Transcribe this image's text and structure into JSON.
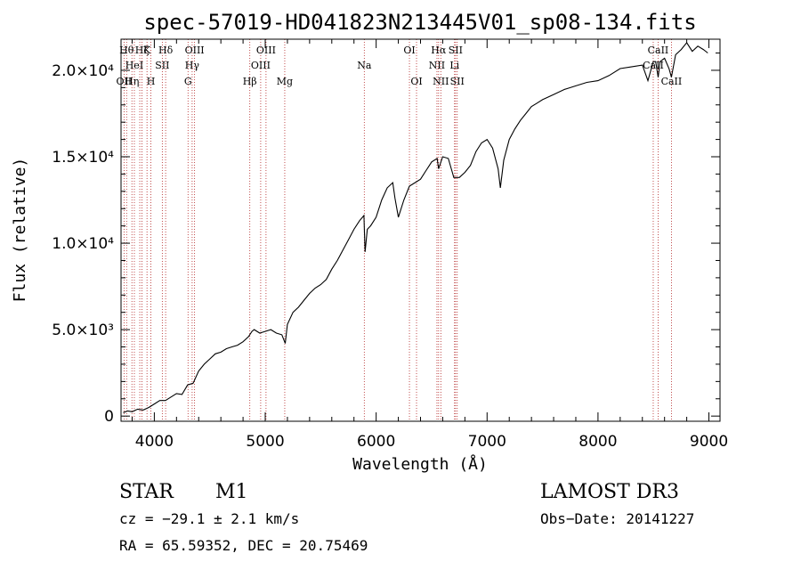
{
  "chart_data": {
    "type": "line",
    "title": "spec-57019-HD041823N213445V01_sp08-134.fits",
    "xlabel": "Wavelength (Å)",
    "ylabel": "Flux (relative)",
    "xlim": [
      3700,
      9100
    ],
    "ylim": [
      -300,
      21800
    ],
    "x_ticks": [
      4000,
      5000,
      6000,
      7000,
      8000,
      9000
    ],
    "x_tick_labels": [
      "4000",
      "5000",
      "6000",
      "7000",
      "8000",
      "9000"
    ],
    "y_ticks": [
      0,
      5000,
      10000,
      15000,
      20000
    ],
    "y_tick_labels": [
      "0",
      "5.0×10³",
      "1.0×10⁴",
      "1.5×10⁴",
      "2.0×10⁴"
    ],
    "series": [
      {
        "name": "flux",
        "x": [
          3720,
          3760,
          3800,
          3850,
          3900,
          3950,
          4000,
          4050,
          4100,
          4150,
          4200,
          4250,
          4300,
          4350,
          4400,
          4450,
          4500,
          4550,
          4600,
          4650,
          4700,
          4750,
          4800,
          4850,
          4880,
          4900,
          4950,
          5000,
          5050,
          5100,
          5150,
          5180,
          5200,
          5250,
          5300,
          5350,
          5400,
          5450,
          5500,
          5550,
          5600,
          5650,
          5700,
          5750,
          5800,
          5850,
          5890,
          5900,
          5920,
          5950,
          6000,
          6050,
          6100,
          6150,
          6170,
          6200,
          6250,
          6300,
          6350,
          6400,
          6450,
          6480,
          6500,
          6550,
          6563,
          6600,
          6650,
          6700,
          6750,
          6800,
          6850,
          6900,
          6950,
          7000,
          7050,
          7100,
          7120,
          7150,
          7200,
          7250,
          7300,
          7350,
          7400,
          7450,
          7500,
          7600,
          7700,
          7800,
          7900,
          8000,
          8100,
          8200,
          8300,
          8400,
          8450,
          8498,
          8520,
          8542,
          8560,
          8600,
          8640,
          8662,
          8700,
          8750,
          8800,
          8850,
          8900,
          8950,
          8990
        ],
        "y": [
          200,
          300,
          250,
          400,
          350,
          500,
          700,
          900,
          900,
          1100,
          1300,
          1250,
          1800,
          1900,
          2600,
          3000,
          3300,
          3600,
          3700,
          3900,
          4000,
          4100,
          4300,
          4600,
          4900,
          5000,
          4800,
          4900,
          5000,
          4800,
          4700,
          4200,
          5300,
          6000,
          6300,
          6700,
          7100,
          7400,
          7600,
          7900,
          8500,
          9000,
          9600,
          10200,
          10800,
          11300,
          11600,
          9500,
          10800,
          11000,
          11500,
          12500,
          13200,
          13500,
          12600,
          11500,
          12500,
          13300,
          13500,
          13700,
          14200,
          14500,
          14700,
          14900,
          14300,
          15000,
          14900,
          13800,
          13800,
          14100,
          14500,
          15300,
          15800,
          16000,
          15500,
          14300,
          13200,
          14800,
          16000,
          16600,
          17100,
          17500,
          17900,
          18100,
          18300,
          18600,
          18900,
          19100,
          19300,
          19400,
          19700,
          20100,
          20200,
          20300,
          19400,
          20500,
          20500,
          19600,
          20500,
          20700,
          20100,
          19600,
          20900,
          21200,
          21600,
          21100,
          21400,
          21200,
          21000
        ]
      }
    ],
    "lines": [
      {
        "wl": 3727,
        "label": "OII",
        "row": 3
      },
      {
        "wl": 3750,
        "label": "Hθ",
        "row": 1
      },
      {
        "wl": 3798,
        "label": "Hη",
        "row": 3
      },
      {
        "wl": 3820,
        "label": "HeI",
        "row": 2
      },
      {
        "wl": 3869,
        "label": "",
        "row": 0
      },
      {
        "wl": 3889,
        "label": "Hζ",
        "row": 0
      },
      {
        "wl": 3934,
        "label": "K",
        "row": 1
      },
      {
        "wl": 3969,
        "label": "H",
        "row": 3
      },
      {
        "wl": 4072,
        "label": "SII",
        "row": 2
      },
      {
        "wl": 4102,
        "label": "Hδ",
        "row": 1
      },
      {
        "wl": 4304,
        "label": "G",
        "row": 3
      },
      {
        "wl": 4341,
        "label": "Hγ",
        "row": 2
      },
      {
        "wl": 4363,
        "label": "OIII",
        "row": 1
      },
      {
        "wl": 4861,
        "label": "Hβ",
        "row": 3
      },
      {
        "wl": 4959,
        "label": "OIII",
        "row": 2
      },
      {
        "wl": 5007,
        "label": "OIII",
        "row": 1
      },
      {
        "wl": 5176,
        "label": "Mg",
        "row": 3
      },
      {
        "wl": 5893,
        "label": "Na",
        "row": 2
      },
      {
        "wl": 6300,
        "label": "OI",
        "row": 1
      },
      {
        "wl": 6364,
        "label": "OI",
        "row": 3
      },
      {
        "wl": 6548,
        "label": "NII",
        "row": 2
      },
      {
        "wl": 6563,
        "label": "Hα",
        "row": 1
      },
      {
        "wl": 6583,
        "label": "NII",
        "row": 3
      },
      {
        "wl": 6707,
        "label": "Li",
        "row": 2
      },
      {
        "wl": 6716,
        "label": "SII",
        "row": 1
      },
      {
        "wl": 6731,
        "label": "SII",
        "row": 3
      },
      {
        "wl": 8498,
        "label": "CaII",
        "row": 2
      },
      {
        "wl": 8542,
        "label": "CaII",
        "row": 1
      },
      {
        "wl": 8662,
        "label": "CaII",
        "row": 3
      }
    ]
  },
  "info": {
    "class_label": "STAR",
    "subclass": "M1",
    "survey": "LAMOST DR3",
    "redshift": "cz = −29.1 ± 2.1 km/s",
    "obs_date": "Obs−Date: 20141227",
    "coords": "RA =  65.59352, DEC =  20.75469"
  }
}
